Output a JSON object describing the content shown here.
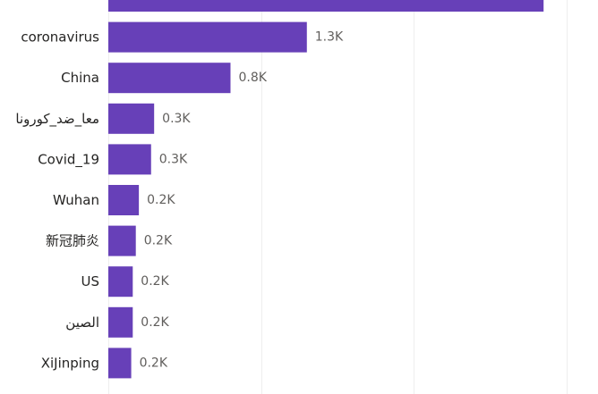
{
  "chart_data": {
    "type": "bar",
    "orientation": "horizontal",
    "categories": [
      "",
      "coronavirus",
      "China",
      "معا_ضد_كورونا",
      "Covid_19",
      "Wuhan",
      "新冠肺炎",
      "US",
      "الصين",
      "XiJinping"
    ],
    "values": [
      2.85,
      1.3,
      0.8,
      0.3,
      0.28,
      0.2,
      0.18,
      0.16,
      0.16,
      0.15
    ],
    "value_labels": [
      "",
      "1.3K",
      "0.8K",
      "0.3K",
      "0.3K",
      "0.2K",
      "0.2K",
      "0.2K",
      "0.2K",
      "0.2K"
    ],
    "unit": "K",
    "xlim": [
      0,
      3.0
    ],
    "x_gridlines": [
      0,
      1,
      2,
      3
    ],
    "grid": true,
    "legend": "none",
    "title": "",
    "xlabel": "",
    "ylabel": ""
  },
  "colors": {
    "bar": "#6740b8",
    "gridline": "#eeeeee",
    "category_text": "#252423",
    "value_text": "#605e5c"
  }
}
